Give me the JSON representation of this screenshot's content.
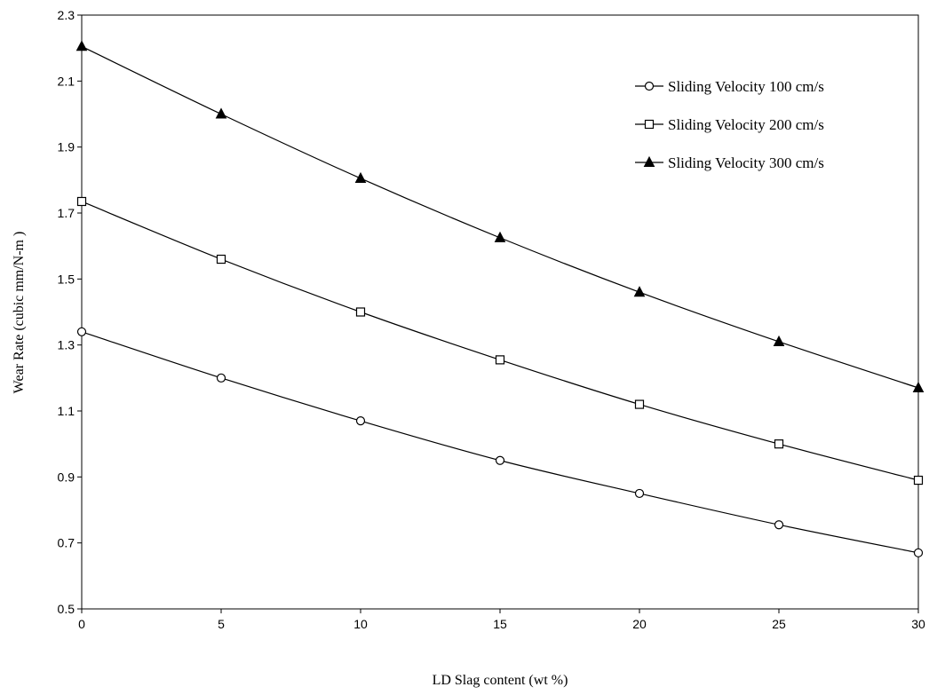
{
  "chart_data": {
    "type": "line",
    "xlabel": "LD Slag content (wt %)",
    "ylabel": "Wear Rate (cubic mm/N-m )",
    "xlim": [
      0,
      30
    ],
    "ylim": [
      0.5,
      2.3
    ],
    "x_ticks": [
      "0",
      "5",
      "10",
      "15",
      "20",
      "25",
      "30"
    ],
    "y_ticks": [
      "0.5",
      "0.7",
      "0.9",
      "1.1",
      "1.3",
      "1.5",
      "1.7",
      "1.9",
      "2.1",
      "2.3"
    ],
    "grid": false,
    "legend_position": "top-right",
    "x": [
      0,
      5,
      10,
      15,
      20,
      25,
      30
    ],
    "series": [
      {
        "name": "Sliding Velocity 100 cm/s",
        "marker": "circle-open",
        "color": "#000000",
        "values": [
          1.34,
          1.2,
          1.07,
          0.95,
          0.85,
          0.755,
          0.67
        ]
      },
      {
        "name": "Sliding Velocity 200 cm/s",
        "marker": "square-open",
        "color": "#000000",
        "values": [
          1.735,
          1.56,
          1.4,
          1.255,
          1.12,
          1.0,
          0.89
        ]
      },
      {
        "name": "Sliding Velocity 300 cm/s",
        "marker": "triangle-filled",
        "color": "#000000",
        "values": [
          2.205,
          2.0,
          1.805,
          1.625,
          1.46,
          1.31,
          1.17
        ]
      }
    ]
  }
}
